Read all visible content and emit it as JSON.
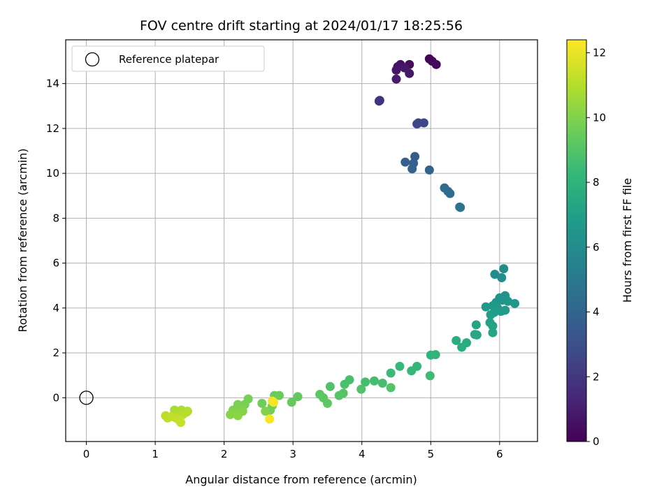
{
  "chart_data": {
    "type": "scatter",
    "title": "FOV centre drift starting at 2024/01/17 18:25:56",
    "xlabel": "Angular distance from reference (arcmin)",
    "ylabel": "Rotation from reference (arcmin)",
    "xlim": [
      -0.3,
      6.55
    ],
    "ylim": [
      -1.95,
      15.95
    ],
    "xticks": [
      0,
      1,
      2,
      3,
      4,
      5,
      6
    ],
    "yticks": [
      0,
      2,
      4,
      6,
      8,
      10,
      12,
      14
    ],
    "grid": true,
    "legend": {
      "placement": "top-left",
      "entries": [
        "Reference platepar"
      ]
    },
    "reference_point": {
      "x": 0,
      "y": 0,
      "label": "Reference platepar"
    },
    "colorbar": {
      "label": "Hours from first FF file",
      "range": [
        0,
        12.4
      ],
      "ticks": [
        0,
        2,
        4,
        6,
        8,
        10,
        12
      ],
      "colormap": "viridis"
    },
    "series": [
      {
        "points": [
          {
            "x": 4.98,
            "y": 15.1,
            "c": 0.1
          },
          {
            "x": 5.02,
            "y": 15.0,
            "c": 0.2
          },
          {
            "x": 5.08,
            "y": 14.85,
            "c": 0.3
          },
          {
            "x": 4.69,
            "y": 14.85,
            "c": 0.4
          },
          {
            "x": 4.56,
            "y": 14.85,
            "c": 0.5
          },
          {
            "x": 4.52,
            "y": 14.75,
            "c": 0.6
          },
          {
            "x": 4.5,
            "y": 14.6,
            "c": 0.7
          },
          {
            "x": 4.62,
            "y": 14.7,
            "c": 0.75
          },
          {
            "x": 4.69,
            "y": 14.45,
            "c": 0.8
          },
          {
            "x": 4.5,
            "y": 14.2,
            "c": 0.9
          },
          {
            "x": 4.26,
            "y": 13.25,
            "c": 1.7
          },
          {
            "x": 4.25,
            "y": 13.22,
            "c": 1.8
          },
          {
            "x": 4.82,
            "y": 12.25,
            "c": 2.5
          },
          {
            "x": 4.8,
            "y": 12.2,
            "c": 2.55
          },
          {
            "x": 4.9,
            "y": 12.25,
            "c": 2.6
          },
          {
            "x": 4.77,
            "y": 10.75,
            "c": 3.6
          },
          {
            "x": 4.63,
            "y": 10.5,
            "c": 3.7
          },
          {
            "x": 4.75,
            "y": 10.45,
            "c": 3.75
          },
          {
            "x": 4.73,
            "y": 10.2,
            "c": 3.8
          },
          {
            "x": 4.98,
            "y": 10.15,
            "c": 3.9
          },
          {
            "x": 5.2,
            "y": 9.35,
            "c": 4.3
          },
          {
            "x": 5.25,
            "y": 9.2,
            "c": 4.35
          },
          {
            "x": 5.28,
            "y": 9.1,
            "c": 4.4
          },
          {
            "x": 5.42,
            "y": 8.5,
            "c": 4.7
          },
          {
            "x": 5.43,
            "y": 8.48,
            "c": 4.75
          },
          {
            "x": 6.06,
            "y": 5.75,
            "c": 6.0
          },
          {
            "x": 5.93,
            "y": 5.5,
            "c": 6.05
          },
          {
            "x": 6.03,
            "y": 5.35,
            "c": 6.1
          },
          {
            "x": 6.08,
            "y": 4.55,
            "c": 6.3
          },
          {
            "x": 6.0,
            "y": 4.45,
            "c": 6.35
          },
          {
            "x": 6.04,
            "y": 4.35,
            "c": 6.4
          },
          {
            "x": 5.95,
            "y": 4.25,
            "c": 6.45
          },
          {
            "x": 6.12,
            "y": 4.3,
            "c": 6.5
          },
          {
            "x": 6.22,
            "y": 4.2,
            "c": 6.55
          },
          {
            "x": 5.9,
            "y": 4.1,
            "c": 6.6
          },
          {
            "x": 5.8,
            "y": 4.05,
            "c": 6.65
          },
          {
            "x": 5.97,
            "y": 4.0,
            "c": 6.7
          },
          {
            "x": 6.08,
            "y": 3.9,
            "c": 6.75
          },
          {
            "x": 6.02,
            "y": 3.85,
            "c": 6.8
          },
          {
            "x": 5.92,
            "y": 3.8,
            "c": 6.85
          },
          {
            "x": 5.87,
            "y": 3.7,
            "c": 6.9
          },
          {
            "x": 5.86,
            "y": 3.35,
            "c": 7.1
          },
          {
            "x": 5.9,
            "y": 3.2,
            "c": 7.15
          },
          {
            "x": 5.66,
            "y": 3.25,
            "c": 7.2
          },
          {
            "x": 5.9,
            "y": 2.9,
            "c": 7.3
          },
          {
            "x": 5.67,
            "y": 2.8,
            "c": 7.35
          },
          {
            "x": 5.64,
            "y": 2.82,
            "c": 7.4
          },
          {
            "x": 5.37,
            "y": 2.55,
            "c": 7.6
          },
          {
            "x": 5.52,
            "y": 2.45,
            "c": 7.65
          },
          {
            "x": 5.45,
            "y": 2.25,
            "c": 7.7
          },
          {
            "x": 5.0,
            "y": 1.9,
            "c": 8.0
          },
          {
            "x": 5.07,
            "y": 1.92,
            "c": 8.05
          },
          {
            "x": 4.8,
            "y": 1.4,
            "c": 8.2
          },
          {
            "x": 4.55,
            "y": 1.4,
            "c": 8.3
          },
          {
            "x": 4.72,
            "y": 1.2,
            "c": 8.35
          },
          {
            "x": 4.42,
            "y": 1.1,
            "c": 8.4
          },
          {
            "x": 4.99,
            "y": 0.98,
            "c": 8.45
          },
          {
            "x": 4.18,
            "y": 0.75,
            "c": 8.6
          },
          {
            "x": 4.05,
            "y": 0.7,
            "c": 8.65
          },
          {
            "x": 4.3,
            "y": 0.65,
            "c": 8.7
          },
          {
            "x": 3.82,
            "y": 0.8,
            "c": 8.75
          },
          {
            "x": 3.75,
            "y": 0.6,
            "c": 8.8
          },
          {
            "x": 3.54,
            "y": 0.5,
            "c": 8.9
          },
          {
            "x": 3.99,
            "y": 0.38,
            "c": 8.95
          },
          {
            "x": 4.42,
            "y": 0.45,
            "c": 9.0
          },
          {
            "x": 3.73,
            "y": 0.2,
            "c": 9.05
          },
          {
            "x": 3.67,
            "y": 0.1,
            "c": 9.1
          },
          {
            "x": 3.39,
            "y": 0.15,
            "c": 9.15
          },
          {
            "x": 3.44,
            "y": 0.0,
            "c": 9.2
          },
          {
            "x": 3.5,
            "y": -0.25,
            "c": 9.25
          },
          {
            "x": 3.07,
            "y": 0.05,
            "c": 9.35
          },
          {
            "x": 2.98,
            "y": -0.2,
            "c": 9.4
          },
          {
            "x": 2.8,
            "y": 0.1,
            "c": 9.5
          },
          {
            "x": 2.73,
            "y": 0.1,
            "c": 9.55
          },
          {
            "x": 2.55,
            "y": -0.25,
            "c": 9.6
          },
          {
            "x": 2.7,
            "y": -0.35,
            "c": 9.65
          },
          {
            "x": 2.67,
            "y": -0.55,
            "c": 9.7
          },
          {
            "x": 2.35,
            "y": -0.05,
            "c": 9.75
          },
          {
            "x": 2.3,
            "y": -0.3,
            "c": 9.8
          },
          {
            "x": 2.2,
            "y": -0.3,
            "c": 9.85
          },
          {
            "x": 2.25,
            "y": -0.45,
            "c": 9.9
          },
          {
            "x": 2.13,
            "y": -0.55,
            "c": 9.95
          },
          {
            "x": 2.6,
            "y": -0.6,
            "c": 10.0
          },
          {
            "x": 2.27,
            "y": -0.6,
            "c": 10.05
          },
          {
            "x": 2.18,
            "y": -0.65,
            "c": 10.1
          },
          {
            "x": 2.09,
            "y": -0.75,
            "c": 10.15
          },
          {
            "x": 2.2,
            "y": -0.8,
            "c": 10.2
          },
          {
            "x": 1.28,
            "y": -0.55,
            "c": 10.8
          },
          {
            "x": 1.38,
            "y": -0.55,
            "c": 10.85
          },
          {
            "x": 1.32,
            "y": -0.7,
            "c": 10.9
          },
          {
            "x": 1.47,
            "y": -0.6,
            "c": 10.95
          },
          {
            "x": 1.45,
            "y": -0.65,
            "c": 11.0
          },
          {
            "x": 1.4,
            "y": -0.75,
            "c": 11.05
          },
          {
            "x": 1.15,
            "y": -0.8,
            "c": 11.1
          },
          {
            "x": 1.22,
            "y": -0.85,
            "c": 11.15
          },
          {
            "x": 1.18,
            "y": -0.9,
            "c": 11.2
          },
          {
            "x": 1.3,
            "y": -0.9,
            "c": 11.25
          },
          {
            "x": 1.35,
            "y": -1.0,
            "c": 11.3
          },
          {
            "x": 1.37,
            "y": -1.1,
            "c": 11.35
          },
          {
            "x": 2.7,
            "y": -0.15,
            "c": 12.1
          },
          {
            "x": 2.72,
            "y": -0.2,
            "c": 12.2
          },
          {
            "x": 2.66,
            "y": -0.95,
            "c": 12.3
          }
        ]
      }
    ]
  }
}
